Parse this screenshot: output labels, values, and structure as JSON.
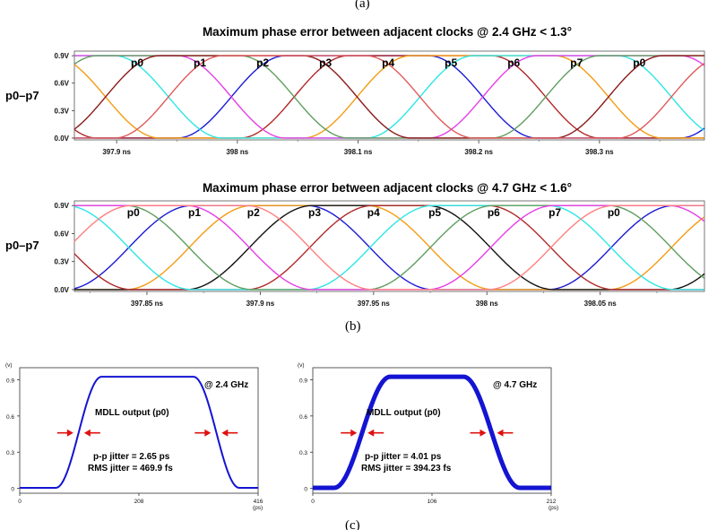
{
  "panel_labels": {
    "a": "(a)",
    "b": "(b)",
    "c": "(c)"
  },
  "chart_data": [
    {
      "type": "line",
      "id": "top",
      "title": "Maximum phase error between adjacent clocks @ 2.4 GHz < 1.3°",
      "ylabel": "p0–p7",
      "yticks": [
        "0.9V",
        "0.6V",
        "0.3V",
        "0.0V"
      ],
      "ytick_values": [
        0.9,
        0.6,
        0.3,
        0.0
      ],
      "ylim": [
        -0.02,
        0.95
      ],
      "xlim": [
        397.865,
        398.387
      ],
      "xticks": [
        "397.9 ns",
        "398 ns",
        "398.1 ns",
        "398.2 ns",
        "398.3 ns"
      ],
      "xtick_values": [
        397.9,
        398.0,
        398.1,
        398.2,
        398.3
      ],
      "period_ns": 0.4167,
      "rise_center_ns": 397.995,
      "transition_ns": 0.045,
      "phase_labels": [
        "p0",
        "p1",
        "p2",
        "p3",
        "p4",
        "p5",
        "p6",
        "p7",
        "p0"
      ],
      "phase_label_x_ns": [
        397.917,
        397.969,
        398.021,
        398.073,
        398.125,
        398.177,
        398.229,
        398.281,
        398.333
      ],
      "series": [
        {
          "name": "p0",
          "color": "#1a1ad6"
        },
        {
          "name": "p1",
          "color": "#b02a2a"
        },
        {
          "name": "p2",
          "color": "#f39c12"
        },
        {
          "name": "p3",
          "color": "#2ee6e6"
        },
        {
          "name": "p4",
          "color": "#e63ee6"
        },
        {
          "name": "p5",
          "color": "#5f9e5f"
        },
        {
          "name": "p6",
          "color": "#8b1a1a"
        },
        {
          "name": "p7",
          "color": "#e05a5a"
        }
      ]
    },
    {
      "type": "line",
      "id": "mid",
      "title": "Maximum phase error between adjacent clocks @ 4.7 GHz < 1.6°",
      "ylabel": "p0–p7",
      "yticks": [
        "0.9V",
        "0.6V",
        "0.3V",
        "0.0V"
      ],
      "ytick_values": [
        0.9,
        0.6,
        0.3,
        0.0
      ],
      "ylim": [
        -0.02,
        0.95
      ],
      "xlim": [
        397.818,
        398.096
      ],
      "xticks": [
        "397.85 ns",
        "397.9 ns",
        "397.95 ns",
        "398 ns",
        "398.05 ns"
      ],
      "xtick_values": [
        397.85,
        397.9,
        397.95,
        398.0,
        398.05
      ],
      "period_ns": 0.2128,
      "rise_center_ns": 397.842,
      "transition_ns": 0.028,
      "phase_labels": [
        "p0",
        "p1",
        "p2",
        "p3",
        "p4",
        "p5",
        "p6",
        "p7",
        "p0"
      ],
      "phase_label_x_ns": [
        397.844,
        397.871,
        397.897,
        397.924,
        397.95,
        397.977,
        398.003,
        398.03,
        398.056
      ],
      "series": [
        {
          "name": "p0",
          "color": "#1a1ad6"
        },
        {
          "name": "p1",
          "color": "#f39c12"
        },
        {
          "name": "p2",
          "color": "#111111"
        },
        {
          "name": "p3",
          "color": "#b02a2a"
        },
        {
          "name": "p4",
          "color": "#2ee6e6"
        },
        {
          "name": "p5",
          "color": "#5f9e5f"
        },
        {
          "name": "p6",
          "color": "#e63ee6"
        },
        {
          "name": "p7",
          "color": "#ff7f7f"
        }
      ]
    },
    {
      "type": "line",
      "id": "left",
      "axis_unit_y": "(v)",
      "axis_unit_x": "(ps)",
      "yticks": [
        "0.9",
        "0.6",
        "0.3",
        "0"
      ],
      "ytick_values": [
        0.9,
        0.6,
        0.3,
        0.0
      ],
      "ylim": [
        -0.04,
        1.0
      ],
      "xlim": [
        0,
        416
      ],
      "xticks": [
        "0",
        "208",
        "416"
      ],
      "xtick_values": [
        0,
        208,
        416
      ],
      "rise_ps": 103,
      "fall_ps": 343,
      "transition_ps": 40,
      "frequency_label": "@ 2.4 GHz",
      "caption": "MDLL output (p0)",
      "jitter_pp": "p-p jitter = 2.65 ps",
      "jitter_rms": "RMS jitter = 469.9 fs",
      "line_width": 2,
      "color": "#1414d2"
    },
    {
      "type": "line",
      "id": "right",
      "axis_unit_y": "(v)",
      "axis_unit_x": "(ps)",
      "yticks": [
        "0.9",
        "0.6",
        "0.3",
        "0"
      ],
      "ytick_values": [
        0.9,
        0.6,
        0.3,
        0.0
      ],
      "ylim": [
        -0.04,
        1.0
      ],
      "xlim": [
        0,
        212
      ],
      "xticks": [
        "0",
        "106",
        "212"
      ],
      "xtick_values": [
        0,
        106,
        212
      ],
      "rise_ps": 44,
      "fall_ps": 159,
      "transition_ps": 25,
      "frequency_label": "@ 4.7 GHz",
      "caption": "MDLL output (p0)",
      "jitter_pp": "p-p jitter = 4.01 ps",
      "jitter_rms": "RMS jitter = 394.23 fs",
      "line_width": 5,
      "color": "#1414d2"
    }
  ]
}
